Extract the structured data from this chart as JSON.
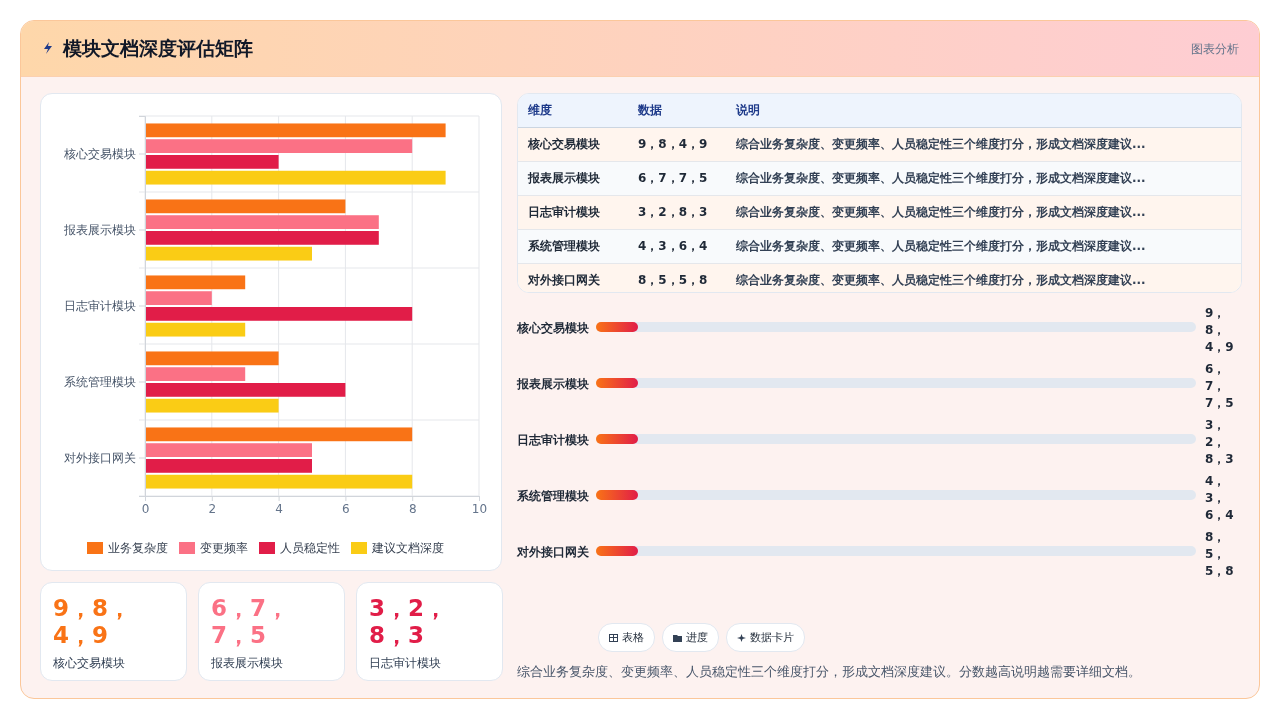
{
  "chart_data": [
    {
      "type": "other",
      "title": "模块文档深度评估矩阵",
      "annotations": [
        "图表分析"
      ]
    },
    {
      "type": "bar",
      "orientation": "horizontal",
      "categories": [
        "核心交易模块",
        "报表展示模块",
        "日志审计模块",
        "系统管理模块",
        "对外接口网关"
      ],
      "series": [
        {
          "name": "业务复杂度",
          "color": "#f97316",
          "values": [
            9,
            6,
            3,
            4,
            8
          ]
        },
        {
          "name": "变更频率",
          "color": "#fb7185",
          "values": [
            8,
            7,
            2,
            3,
            5
          ]
        },
        {
          "name": "人员稳定性",
          "color": "#e11d48",
          "values": [
            4,
            7,
            8,
            6,
            5
          ]
        },
        {
          "name": "建议文档深度",
          "color": "#facc15",
          "values": [
            9,
            5,
            3,
            4,
            8
          ]
        }
      ],
      "xlim": [
        0,
        10
      ],
      "xticks": [
        0,
        2,
        4,
        6,
        8,
        10
      ],
      "grid": true,
      "legend": "bottom"
    },
    {
      "type": "other",
      "categories": [
        "核心交易模块",
        "报表展示模块",
        "日志审计模块",
        "系统管理模块",
        "对外接口网关"
      ],
      "value_labels": [
        "9，8，4，9",
        "6，7，7，5",
        "3，2，8，3",
        "4，3，6，4",
        "8，5，5，8"
      ],
      "annotations": [
        "维度",
        "数据",
        "说明",
        "综合业务复杂度、变更频率、人员稳定性三个维度打分，形成文档深度建议...",
        "综合业务复杂度、变更频率、人员稳定性三个维度打分，形成文档深度建议...",
        "综合业务复杂度、变更频率、人员稳定性三个维度打分，形成文档深度建议...",
        "综合业务复杂度、变更频率、人员稳定性三个维度打分，形成文档深度建议...",
        "综合业务复杂度、变更频率、人员稳定性三个维度打分，形成文档深度建议..."
      ]
    },
    {
      "type": "other",
      "categories": [
        "核心交易模块",
        "报表展示模块",
        "日志审计模块",
        "系统管理模块",
        "对外接口网关"
      ],
      "value_labels": [
        "9，8，4，9",
        "6，7，7，5",
        "3，2，8，3",
        "4，3，6，4",
        "8，5，5，8"
      ]
    },
    {
      "type": "other",
      "categories": [
        "核心交易模块",
        "报表展示模块",
        "日志审计模块"
      ],
      "value_labels": [
        "9，8，4，9",
        "6，7，7，5",
        "3，2，8，3"
      ]
    },
    {
      "type": "other",
      "annotations": [
        "表格",
        "进度",
        "数据卡片",
        "综合业务复杂度、变更频率、人员稳定性三个维度打分，形成文档深度建议。分数越高说明越需要详细文档。"
      ]
    }
  ]
}
